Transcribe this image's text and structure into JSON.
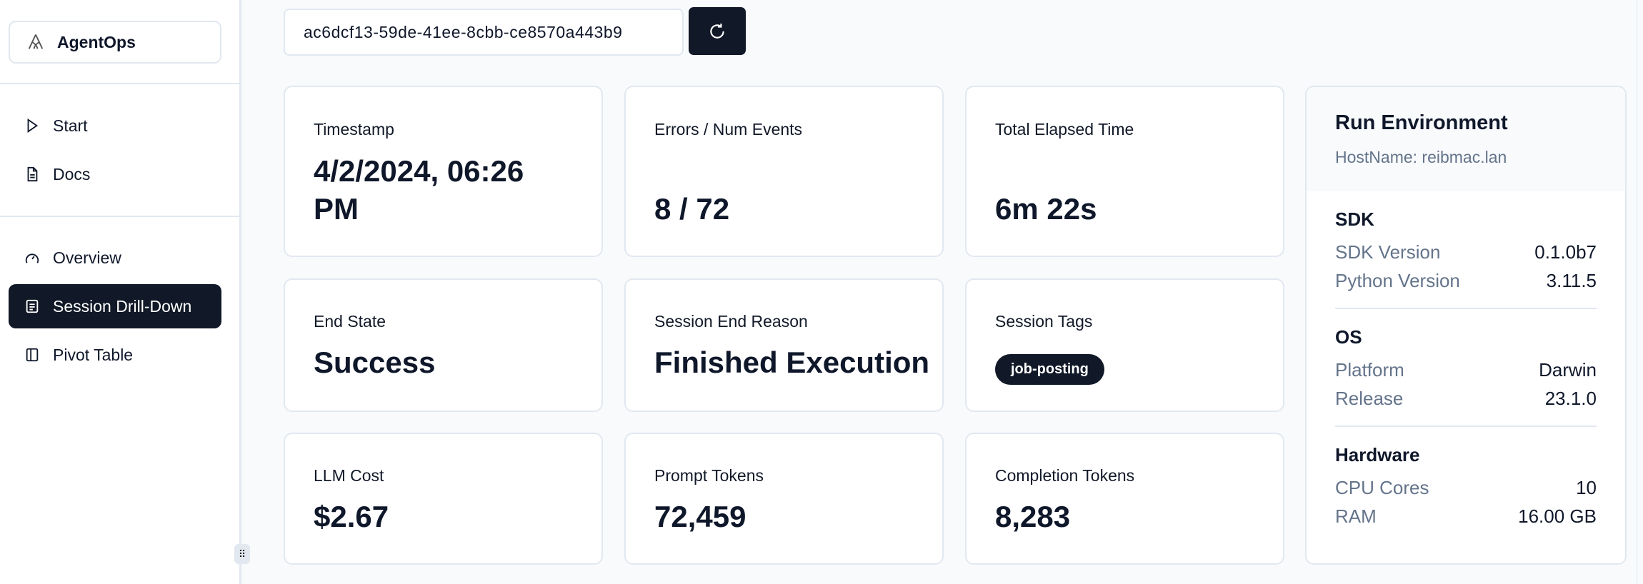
{
  "sidebar": {
    "brand": "AgentOps",
    "items": [
      {
        "label": "Start",
        "icon": "play-icon"
      },
      {
        "label": "Docs",
        "icon": "document-icon"
      },
      {
        "label": "Overview",
        "icon": "gauge-icon"
      },
      {
        "label": "Session Drill-Down",
        "icon": "list-icon",
        "active": true
      },
      {
        "label": "Pivot Table",
        "icon": "sidebar-panel-icon"
      }
    ]
  },
  "session_id": "ac6dcf13-59de-41ee-8cbb-ce8570a443b9",
  "refresh_icon": "refresh-icon",
  "cards": [
    {
      "label": "Timestamp",
      "value": "4/2/2024, 06:26 PM"
    },
    {
      "label": "Errors / Num Events",
      "value": "8 / 72"
    },
    {
      "label": "Total Elapsed Time",
      "value": "6m 22s"
    },
    {
      "label": "End State",
      "value": "Success"
    },
    {
      "label": "Session End Reason",
      "value": "Finished Execution"
    },
    {
      "label": "Session Tags",
      "tag": "job-posting"
    },
    {
      "label": "LLM Cost",
      "value": "$2.67"
    },
    {
      "label": "Prompt Tokens",
      "value": "72,459"
    },
    {
      "label": "Completion Tokens",
      "value": "8,283"
    }
  ],
  "env": {
    "title": "Run Environment",
    "host": "HostName: reibmac.lan",
    "sections": [
      {
        "title": "SDK",
        "rows": [
          {
            "k": "SDK Version",
            "v": "0.1.0b7"
          },
          {
            "k": "Python Version",
            "v": "3.11.5"
          }
        ]
      },
      {
        "title": "OS",
        "rows": [
          {
            "k": "Platform",
            "v": "Darwin"
          },
          {
            "k": "Release",
            "v": "23.1.0"
          }
        ]
      },
      {
        "title": "Hardware",
        "rows": [
          {
            "k": "CPU Cores",
            "v": "10"
          },
          {
            "k": "RAM",
            "v": "16.00 GB"
          }
        ]
      }
    ]
  },
  "colors": {
    "accent": "#111827",
    "muted": "#64748b",
    "border": "#e2e8f0"
  }
}
